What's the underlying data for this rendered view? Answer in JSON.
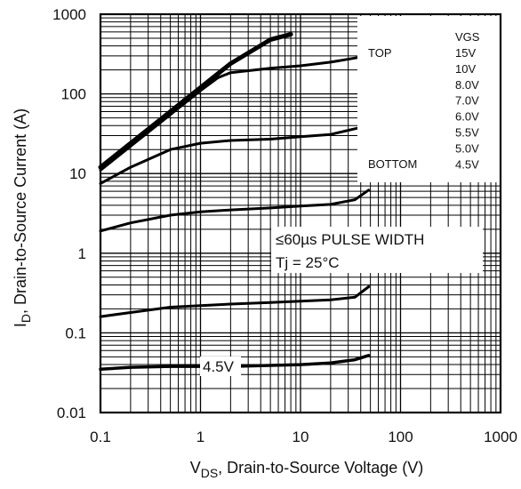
{
  "chart_data": {
    "type": "line",
    "xlabel": "V_DS, Drain-to-Source Voltage (V)",
    "xlabel_main": "V",
    "xlabel_sub": "DS",
    "xlabel_rest": ", Drain-to-Source Voltage (V)",
    "ylabel": "I_D, Drain-to-Source Current (A)",
    "ylabel_main": "I",
    "ylabel_sub": "D",
    "ylabel_rest": ", Drain-to-Source Current (A)",
    "x_scale": "log",
    "y_scale": "log",
    "xlim": [
      0.1,
      1000
    ],
    "ylim": [
      0.01,
      1000
    ],
    "x_ticks": [
      "0.1",
      "1",
      "10",
      "100",
      "1000"
    ],
    "y_ticks": [
      "0.01",
      "0.1",
      "1",
      "10",
      "100",
      "1000"
    ],
    "grid": true,
    "legend": {
      "placement": "top-right",
      "header": "VGS",
      "top_label": "TOP",
      "bottom_label": "BOTTOM",
      "entries": [
        "15V",
        "10V",
        "8.0V",
        "7.0V",
        "6.0V",
        "5.5V",
        "5.0V",
        "4.5V"
      ]
    },
    "annotations": {
      "pulse": "≤60µs PULSE WIDTH",
      "temperature": "Tj = 25°C",
      "curve_label": "4.5V"
    },
    "series": [
      {
        "values": [
          [
            0.1,
            12
          ],
          [
            0.2,
            24
          ],
          [
            0.5,
            60
          ],
          [
            1,
            120
          ],
          [
            2,
            240
          ],
          [
            5,
            480
          ],
          [
            8,
            560
          ]
        ]
      },
      {
        "values": [
          [
            0.1,
            11
          ],
          [
            0.2,
            22
          ],
          [
            0.5,
            55
          ],
          [
            1,
            110
          ],
          [
            1.5,
            160
          ],
          [
            2,
            185
          ],
          [
            5,
            210
          ],
          [
            10,
            225
          ],
          [
            20,
            250
          ],
          [
            40,
            290
          ]
        ]
      },
      {
        "values": [
          [
            0.1,
            7.5
          ],
          [
            0.2,
            12
          ],
          [
            0.5,
            20
          ],
          [
            1,
            24
          ],
          [
            2,
            26
          ],
          [
            5,
            27
          ],
          [
            10,
            29
          ],
          [
            20,
            31
          ],
          [
            40,
            38
          ]
        ]
      },
      {
        "values": [
          [
            0.1,
            1.9
          ],
          [
            0.2,
            2.4
          ],
          [
            0.5,
            3.0
          ],
          [
            1,
            3.3
          ],
          [
            2,
            3.5
          ],
          [
            5,
            3.7
          ],
          [
            10,
            3.9
          ],
          [
            20,
            4.1
          ],
          [
            35,
            4.7
          ],
          [
            48,
            6.2
          ]
        ]
      },
      {
        "values": [
          [
            0.1,
            0.16
          ],
          [
            0.2,
            0.18
          ],
          [
            0.5,
            0.21
          ],
          [
            1,
            0.22
          ],
          [
            2,
            0.23
          ],
          [
            5,
            0.24
          ],
          [
            10,
            0.25
          ],
          [
            20,
            0.26
          ],
          [
            35,
            0.28
          ],
          [
            48,
            0.38
          ]
        ]
      },
      {
        "values": [
          [
            0.1,
            0.035
          ],
          [
            0.2,
            0.037
          ],
          [
            0.5,
            0.038
          ],
          [
            1,
            0.038
          ],
          [
            2,
            0.038
          ],
          [
            5,
            0.039
          ],
          [
            10,
            0.04
          ],
          [
            20,
            0.042
          ],
          [
            35,
            0.046
          ],
          [
            48,
            0.052
          ]
        ]
      }
    ]
  }
}
